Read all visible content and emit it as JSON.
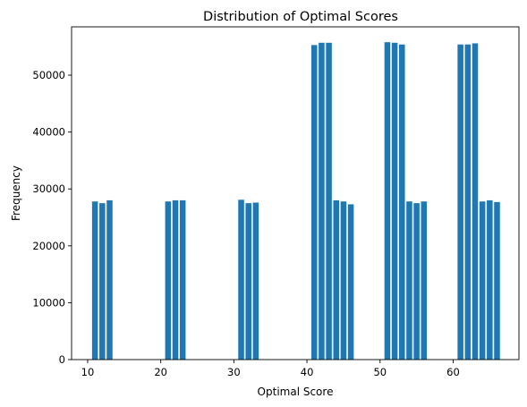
{
  "chart_data": {
    "type": "bar",
    "title": "Distribution of Optimal Scores",
    "xlabel": "Optimal Score",
    "ylabel": "Frequency",
    "xlim": [
      7.8,
      69.0
    ],
    "ylim": [
      0,
      58500
    ],
    "xticks": [
      10,
      20,
      30,
      40,
      50,
      60
    ],
    "yticks": [
      0,
      10000,
      20000,
      30000,
      40000,
      50000
    ],
    "bar_color": "#1f77b4",
    "bar_width": 0.8,
    "grid": false,
    "legend": "none",
    "x": [
      11,
      12,
      13,
      21,
      22,
      23,
      31,
      32,
      33,
      41,
      42,
      43,
      44,
      45,
      46,
      51,
      52,
      53,
      54,
      55,
      56,
      61,
      62,
      63,
      64,
      65,
      66
    ],
    "values": [
      27800,
      27500,
      28000,
      27800,
      28000,
      28000,
      28100,
      27500,
      27600,
      55300,
      55700,
      55700,
      28000,
      27800,
      27300,
      55800,
      55700,
      55400,
      27800,
      27500,
      27800,
      55400,
      55400,
      55600,
      27800,
      28000,
      27700
    ]
  }
}
